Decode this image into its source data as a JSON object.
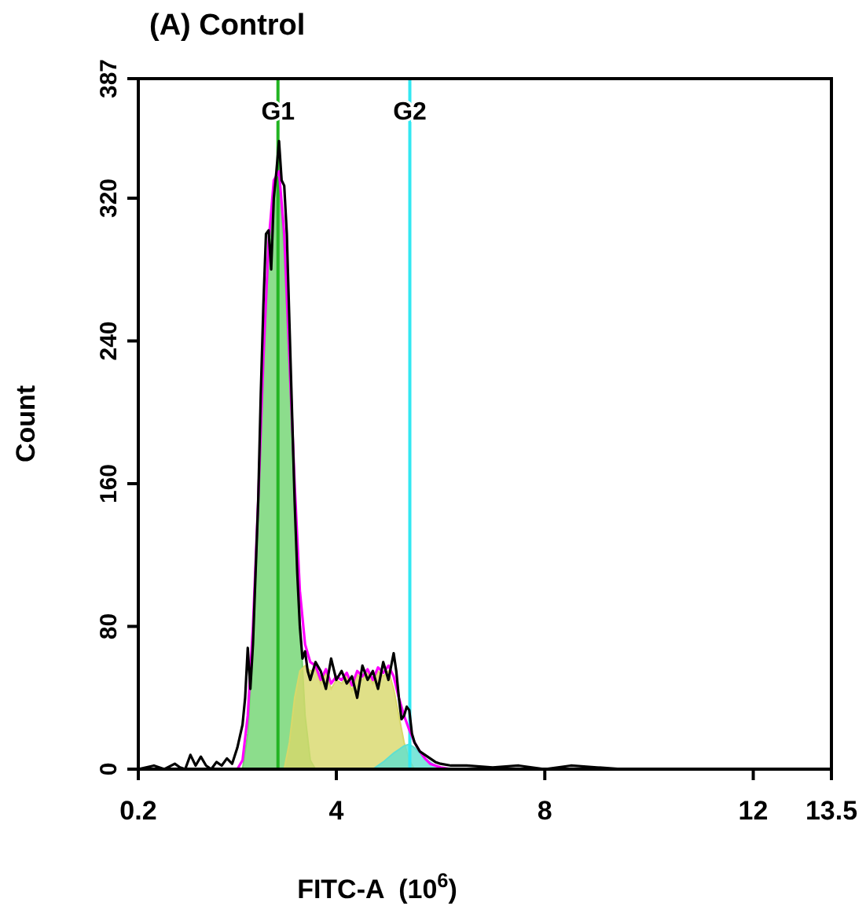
{
  "chart_data": {
    "type": "line",
    "title": "(A) Control",
    "xlabel": "FITC-A  (10$^{6}$)",
    "ylabel": "Count",
    "xlim": [
      0.2,
      13.5
    ],
    "xticks": [
      0.2,
      4,
      8,
      12,
      13.5
    ],
    "ylim": [
      0,
      387
    ],
    "yticks": [
      0,
      80,
      160,
      240,
      320,
      387
    ],
    "grid": false,
    "series": [
      {
        "type": "area",
        "color": "#6fd46f",
        "x": [
          2.2,
          2.3,
          2.4,
          2.5,
          2.6,
          2.7,
          2.8,
          2.9,
          3.0,
          3.1,
          3.2,
          3.3,
          3.4,
          3.5,
          3.6
        ],
        "values": [
          0,
          20,
          70,
          140,
          220,
          290,
          325,
          330,
          290,
          220,
          150,
          85,
          30,
          5,
          0
        ]
      },
      {
        "type": "area",
        "color": "#d8d86a",
        "x": [
          3.0,
          3.1,
          3.2,
          3.3,
          3.4,
          3.5,
          3.6,
          3.7,
          3.8,
          3.9,
          4.0,
          4.1,
          4.2,
          4.3,
          4.4,
          4.5,
          4.6,
          4.7,
          4.8,
          4.9,
          5.0,
          5.1,
          5.2,
          5.3,
          5.4,
          5.5
        ],
        "values": [
          0,
          15,
          40,
          55,
          58,
          55,
          56,
          48,
          54,
          45,
          50,
          48,
          52,
          44,
          53,
          50,
          54,
          48,
          55,
          52,
          55,
          45,
          30,
          15,
          5,
          0
        ]
      },
      {
        "type": "area",
        "color": "#5ee0d0",
        "x": [
          4.7,
          4.9,
          5.1,
          5.3,
          5.4,
          5.5,
          5.7,
          5.9,
          6.1
        ],
        "values": [
          0,
          4,
          9,
          13,
          14,
          12,
          6,
          2,
          0
        ]
      },
      {
        "type": "line",
        "color": "#ff00ff",
        "x": [
          2.1,
          2.2,
          2.3,
          2.4,
          2.5,
          2.6,
          2.7,
          2.8,
          2.9,
          3.0,
          3.1,
          3.2,
          3.3,
          3.4,
          3.5,
          3.6,
          3.7,
          3.8,
          3.9,
          4.0,
          4.1,
          4.2,
          4.3,
          4.4,
          4.5,
          4.6,
          4.7,
          4.8,
          4.9,
          5.0,
          5.1,
          5.2,
          5.3,
          5.4,
          5.5,
          5.6,
          5.7,
          5.8,
          6.0,
          6.2
        ],
        "values": [
          0,
          5,
          30,
          80,
          150,
          230,
          295,
          330,
          335,
          300,
          230,
          160,
          100,
          70,
          60,
          58,
          50,
          56,
          48,
          52,
          50,
          54,
          47,
          55,
          52,
          56,
          50,
          57,
          54,
          58,
          52,
          40,
          30,
          22,
          15,
          10,
          6,
          3,
          1,
          0
        ]
      },
      {
        "type": "line",
        "color": "#000000",
        "x": [
          0.2,
          0.5,
          0.7,
          0.9,
          1.0,
          1.1,
          1.2,
          1.3,
          1.4,
          1.5,
          1.6,
          1.7,
          1.8,
          1.9,
          2.0,
          2.1,
          2.2,
          2.25,
          2.3,
          2.35,
          2.4,
          2.45,
          2.5,
          2.55,
          2.6,
          2.65,
          2.7,
          2.75,
          2.8,
          2.85,
          2.9,
          2.95,
          3.0,
          3.05,
          3.1,
          3.15,
          3.2,
          3.25,
          3.3,
          3.35,
          3.4,
          3.45,
          3.5,
          3.6,
          3.7,
          3.8,
          3.9,
          4.0,
          4.1,
          4.2,
          4.3,
          4.4,
          4.5,
          4.6,
          4.7,
          4.8,
          4.9,
          5.0,
          5.1,
          5.15,
          5.2,
          5.25,
          5.3,
          5.35,
          5.4,
          5.45,
          5.5,
          5.6,
          5.7,
          5.8,
          5.9,
          6.0,
          6.2,
          6.5,
          7.0,
          7.5,
          8.0,
          8.5,
          9.0,
          9.5,
          9.9
        ],
        "values": [
          0,
          2,
          0,
          3,
          1,
          0,
          8,
          2,
          7,
          2,
          0,
          4,
          2,
          6,
          3,
          12,
          25,
          40,
          68,
          45,
          70,
          110,
          150,
          210,
          260,
          300,
          302,
          280,
          320,
          335,
          352,
          330,
          327,
          300,
          250,
          200,
          150,
          110,
          80,
          62,
          66,
          55,
          50,
          60,
          55,
          45,
          62,
          50,
          55,
          48,
          52,
          40,
          58,
          50,
          55,
          45,
          60,
          50,
          65,
          55,
          40,
          28,
          30,
          35,
          33,
          20,
          15,
          10,
          8,
          6,
          4,
          3,
          2,
          2,
          1,
          2,
          0,
          2,
          1,
          0,
          0
        ]
      }
    ],
    "ref_lines": [
      {
        "axis": "x",
        "value": 2.88,
        "label": "G1",
        "color": "#22b422"
      },
      {
        "axis": "x",
        "value": 5.41,
        "label": "G2",
        "color": "#33e8f2"
      }
    ]
  }
}
